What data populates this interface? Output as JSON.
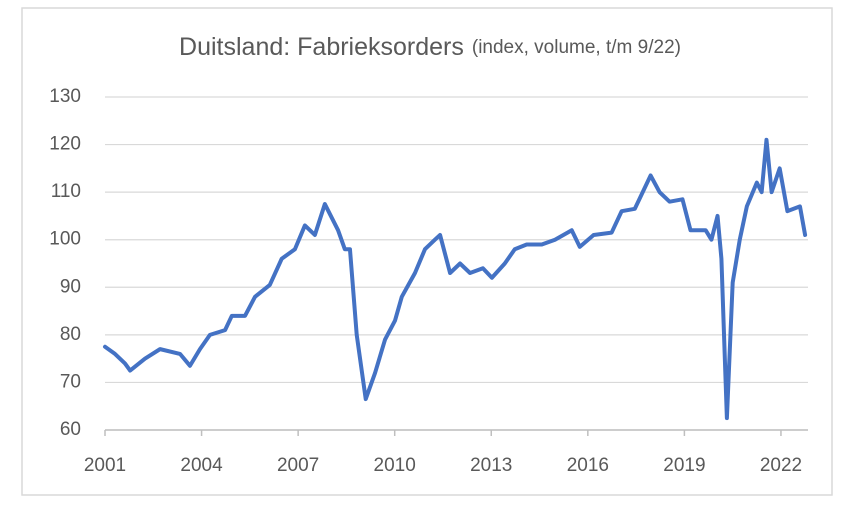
{
  "chart_data": {
    "type": "line",
    "title": "Duitsland: Fabrieksorders",
    "subtitle": "(index, volume, t/m 9/22)",
    "x": [
      2001.0,
      2001.31,
      2001.62,
      2001.78,
      2002.24,
      2002.71,
      2003.33,
      2003.64,
      2003.95,
      2004.26,
      2004.73,
      2004.94,
      2005.35,
      2005.66,
      2006.12,
      2006.49,
      2006.9,
      2007.21,
      2007.52,
      2007.83,
      2008.24,
      2008.45,
      2008.61,
      2008.82,
      2009.1,
      2009.39,
      2009.7,
      2010.01,
      2010.22,
      2010.63,
      2010.94,
      2011.25,
      2011.41,
      2011.72,
      2012.03,
      2012.34,
      2012.74,
      2013.02,
      2013.42,
      2013.73,
      2014.1,
      2014.57,
      2014.98,
      2015.5,
      2015.75,
      2016.18,
      2016.74,
      2017.05,
      2017.46,
      2017.95,
      2018.23,
      2018.54,
      2018.94,
      2019.19,
      2019.66,
      2019.84,
      2020.03,
      2020.15,
      2020.32,
      2020.5,
      2020.72,
      2020.94,
      2021.25,
      2021.4,
      2021.55,
      2021.71,
      2021.96,
      2022.2,
      2022.59,
      2022.75
    ],
    "series": [
      {
        "name": "Fabrieksorders",
        "color": "#4472c4",
        "values": [
          77.5,
          76,
          74,
          72.5,
          75,
          77,
          76,
          73.5,
          77,
          80,
          81,
          84,
          84,
          88,
          90.5,
          96,
          98,
          103,
          101,
          107.5,
          102,
          98,
          98,
          80,
          66.5,
          72,
          79,
          83,
          88,
          93,
          98,
          100,
          101,
          93,
          95,
          93,
          94,
          92,
          95,
          98,
          99,
          99,
          100,
          102,
          98.5,
          101,
          101.5,
          106,
          106.5,
          113.5,
          110,
          108,
          108.5,
          102,
          102,
          100,
          105,
          96,
          62.5,
          91,
          100,
          107,
          112,
          110,
          121,
          110,
          115,
          106,
          107,
          101
        ]
      }
    ],
    "xlim": [
      2001,
      2022.84
    ],
    "xticks": [
      2001,
      2004,
      2007,
      2010,
      2013,
      2016,
      2019,
      2022
    ],
    "ylim": [
      60,
      130
    ],
    "yticks": [
      60,
      70,
      80,
      90,
      100,
      110,
      120,
      130
    ],
    "grid": true
  }
}
